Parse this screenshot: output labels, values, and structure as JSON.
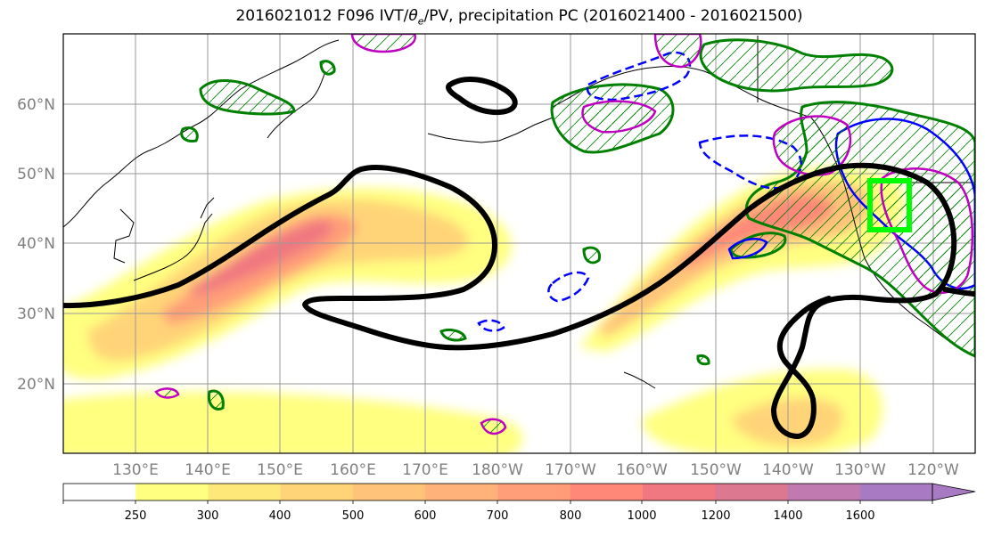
{
  "title": {
    "prefix": "2016021012 F096 IVT/",
    "theta": "θ",
    "theta_sub": "e",
    "suffix": "/PV, precipitation PC (2016021400 - 2016021500)"
  },
  "map": {
    "lat_labels": [
      "60°N",
      "50°N",
      "40°N",
      "30°N",
      "20°N"
    ],
    "lon_labels": [
      "130°E",
      "140°E",
      "150°E",
      "160°E",
      "170°E",
      "180°W",
      "170°W",
      "160°W",
      "150°W",
      "140°W",
      "130°W",
      "120°W"
    ],
    "grid": true,
    "highlight_box_color": "#00ff00",
    "pv_contour_color": "#000000",
    "theta_e_color": "#008000",
    "precip_pos_color": "#0000ff",
    "precip_neg_color": "#c000c0"
  },
  "colorbar": {
    "levels": [
      "250",
      "300",
      "400",
      "500",
      "600",
      "700",
      "800",
      "1000",
      "1200",
      "1400",
      "1600"
    ],
    "colors": [
      "#ffff80",
      "#ffe87a",
      "#ffd478",
      "#ffc47a",
      "#ffb37a",
      "#ff9e78",
      "#ff8878",
      "#f07880",
      "#dc7890",
      "#c07ab0",
      "#a87ac4"
    ]
  }
}
